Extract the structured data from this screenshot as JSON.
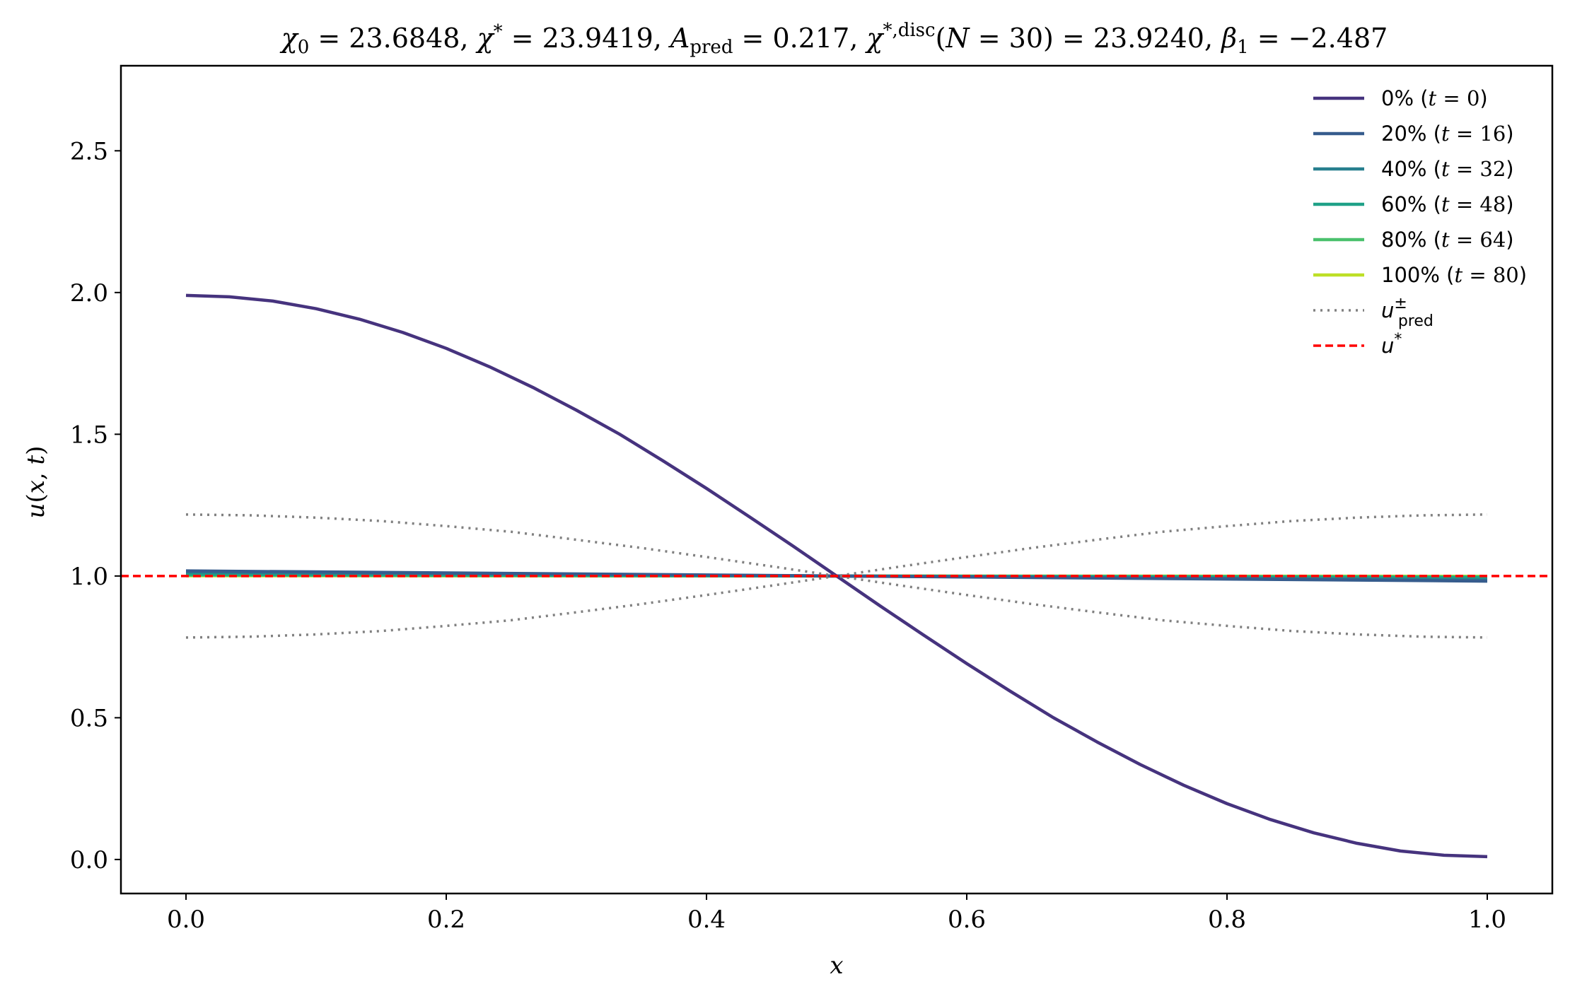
{
  "chart_data": {
    "type": "line",
    "title": "χ₀ = 23.6848,  χ* = 23.9419,  A_pred = 0.217,  χ*,disc(N = 30) = 23.9240,  β₁ = −2.487",
    "title_parts": {
      "chi0": "χ₀ = 23.6848,",
      "chistar": "χ* = 23.9419,",
      "apred": "A_pred = 0.217,",
      "chidisc": "χ*,disc(N = 30) = 23.9240,",
      "beta1": "β₁ = −2.487"
    },
    "xlabel": "x",
    "ylabel": "u(x, t)",
    "xlim": [
      -0.05,
      1.05
    ],
    "ylim": [
      -0.12,
      2.8
    ],
    "xticks": [
      "0.0",
      "0.2",
      "0.4",
      "0.6",
      "0.8",
      "1.0"
    ],
    "yticks": [
      "0.0",
      "0.5",
      "1.0",
      "1.5",
      "2.0",
      "2.5"
    ],
    "grid": false,
    "legend_position": "top-right",
    "series": [
      {
        "name": "0% (t = 0)",
        "color": "#46337e",
        "style": "solid",
        "x": [
          0.0,
          0.0333,
          0.0667,
          0.1,
          0.1333,
          0.1667,
          0.2,
          0.2333,
          0.2667,
          0.3,
          0.3333,
          0.3667,
          0.4,
          0.4333,
          0.4667,
          0.5,
          0.5333,
          0.5667,
          0.6,
          0.6333,
          0.6667,
          0.7,
          0.7333,
          0.7667,
          0.8,
          0.8333,
          0.8667,
          0.9,
          0.9333,
          0.9667,
          1.0
        ],
        "values": [
          1.99,
          1.985,
          1.97,
          1.943,
          1.906,
          1.859,
          1.803,
          1.738,
          1.665,
          1.585,
          1.5,
          1.406,
          1.309,
          1.208,
          1.105,
          1.0,
          0.895,
          0.792,
          0.691,
          0.594,
          0.5,
          0.415,
          0.335,
          0.262,
          0.197,
          0.141,
          0.094,
          0.057,
          0.03,
          0.015,
          0.01
        ]
      },
      {
        "name": "20% (t = 16)",
        "color": "#365c8d",
        "style": "solid",
        "x": [
          0.0,
          0.5,
          1.0
        ],
        "values": [
          1.018,
          1.0,
          0.982
        ]
      },
      {
        "name": "40% (t = 32)",
        "color": "#277f8e",
        "style": "solid",
        "x": [
          0.0,
          0.5,
          1.0
        ],
        "values": [
          1.014,
          1.0,
          0.986
        ]
      },
      {
        "name": "60% (t = 48)",
        "color": "#1fa187",
        "style": "solid",
        "x": [
          0.0,
          0.5,
          1.0
        ],
        "values": [
          1.006,
          1.0,
          0.994
        ]
      },
      {
        "name": "80% (t = 64)",
        "color": "#4ac16d",
        "style": "solid",
        "x": [
          0.0,
          0.5,
          1.0
        ],
        "values": [
          1.003,
          1.0,
          0.997
        ]
      },
      {
        "name": "100% (t = 80)",
        "color": "#bddf26",
        "style": "solid",
        "x": [
          0.0,
          0.5,
          1.0
        ],
        "values": [
          1.001,
          1.0,
          0.999
        ]
      },
      {
        "name": "u±pred",
        "color": "#808080",
        "style": "dotted",
        "x": [
          0.0,
          0.05,
          0.1,
          0.15,
          0.2,
          0.25,
          0.3,
          0.35,
          0.4,
          0.45,
          0.5,
          0.55,
          0.6,
          0.65,
          0.7,
          0.75,
          0.8,
          0.85,
          0.9,
          0.95,
          1.0
        ],
        "values": [
          1.217,
          1.214,
          1.206,
          1.194,
          1.176,
          1.156,
          1.128,
          1.099,
          1.067,
          1.034,
          1.0,
          0.966,
          0.933,
          0.901,
          0.872,
          0.844,
          0.824,
          0.806,
          0.794,
          0.786,
          0.783
        ]
      },
      {
        "name": "u±pred (lower)",
        "legend": false,
        "color": "#808080",
        "style": "dotted",
        "x": [
          0.0,
          0.05,
          0.1,
          0.15,
          0.2,
          0.25,
          0.3,
          0.35,
          0.4,
          0.45,
          0.5,
          0.55,
          0.6,
          0.65,
          0.7,
          0.75,
          0.8,
          0.85,
          0.9,
          0.95,
          1.0
        ],
        "values": [
          0.783,
          0.786,
          0.794,
          0.806,
          0.824,
          0.844,
          0.872,
          0.901,
          0.933,
          0.966,
          1.0,
          1.034,
          1.067,
          1.099,
          1.128,
          1.156,
          1.176,
          1.194,
          1.206,
          1.214,
          1.217
        ]
      },
      {
        "name": "u*",
        "color": "#ff0000",
        "style": "dashed",
        "hline": 1.0
      }
    ]
  }
}
